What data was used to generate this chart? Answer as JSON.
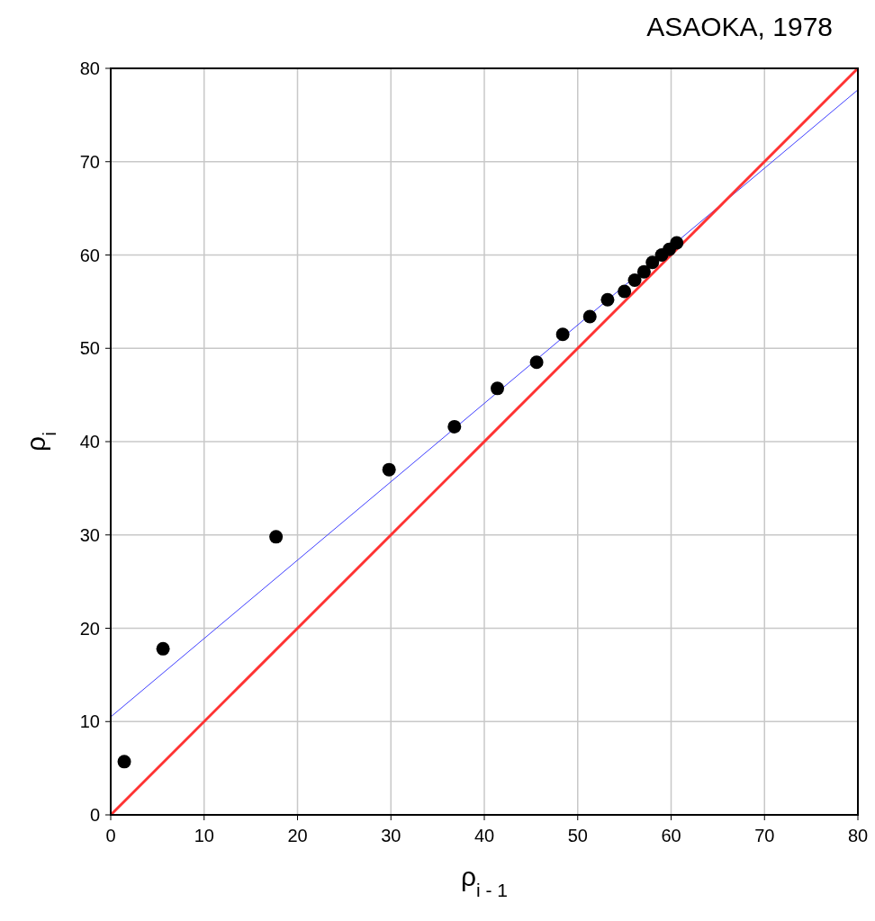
{
  "chart_data": {
    "type": "scatter",
    "title": "ASAOKA, 1978",
    "xlabel": "ρ$_{i - 1}$",
    "ylabel": "ρ$_{i}$",
    "xlim": [
      0,
      80
    ],
    "ylim": [
      0,
      80
    ],
    "xticks": [
      0,
      10,
      20,
      30,
      40,
      50,
      60,
      70,
      80
    ],
    "yticks": [
      0,
      10,
      20,
      30,
      40,
      50,
      60,
      70,
      80
    ],
    "grid": true,
    "series": [
      {
        "color": "#000000",
        "marker": "circle",
        "x": [
          1.45,
          5.6,
          17.7,
          29.8,
          36.8,
          41.4,
          45.6,
          48.4,
          51.3,
          53.2,
          55.0,
          56.1,
          57.1,
          58.0,
          59.0,
          59.8,
          60.6
        ],
        "values": [
          5.7,
          17.8,
          29.8,
          37.0,
          41.6,
          45.7,
          48.5,
          51.5,
          53.4,
          55.2,
          56.1,
          57.3,
          58.2,
          59.2,
          60.0,
          60.6,
          61.3
        ]
      },
      {
        "type": "line",
        "color": "#4040ff",
        "x": [
          0,
          80
        ],
        "values": [
          10.5,
          77.7
        ]
      },
      {
        "type": "line",
        "color": "#ff3333",
        "x": [
          0,
          80
        ],
        "values": [
          0,
          80
        ]
      }
    ]
  }
}
